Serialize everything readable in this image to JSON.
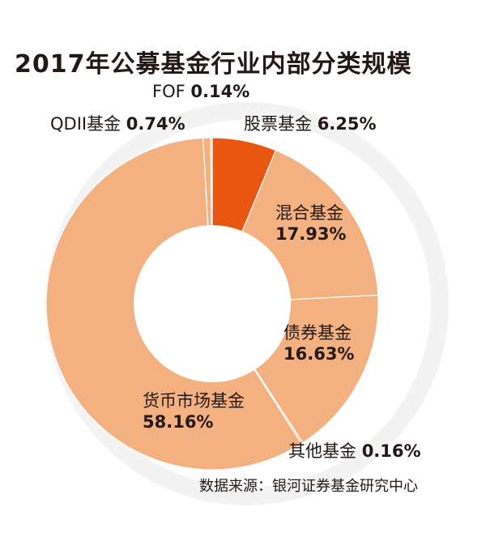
{
  "chart_data": {
    "type": "pie",
    "title": "2017年公募基金行业内部分类规模",
    "source": "数据来源：银河证券基金研究中心",
    "categories": [
      "股票基金",
      "混合基金",
      "债券基金",
      "其他基金",
      "货币市场基金",
      "QDII基金",
      "FOF"
    ],
    "values": [
      6.25,
      17.93,
      16.63,
      0.16,
      58.16,
      0.74,
      0.14
    ],
    "value_labels": [
      "6.25%",
      "17.93%",
      "16.63%",
      "0.16%",
      "58.16%",
      "0.74%",
      "0.14%"
    ],
    "colors": [
      "#e8560f",
      "#f3b080",
      "#f3b080",
      "#f3b080",
      "#f3b080",
      "#f3b080",
      "#f3b080"
    ],
    "donut": true
  }
}
